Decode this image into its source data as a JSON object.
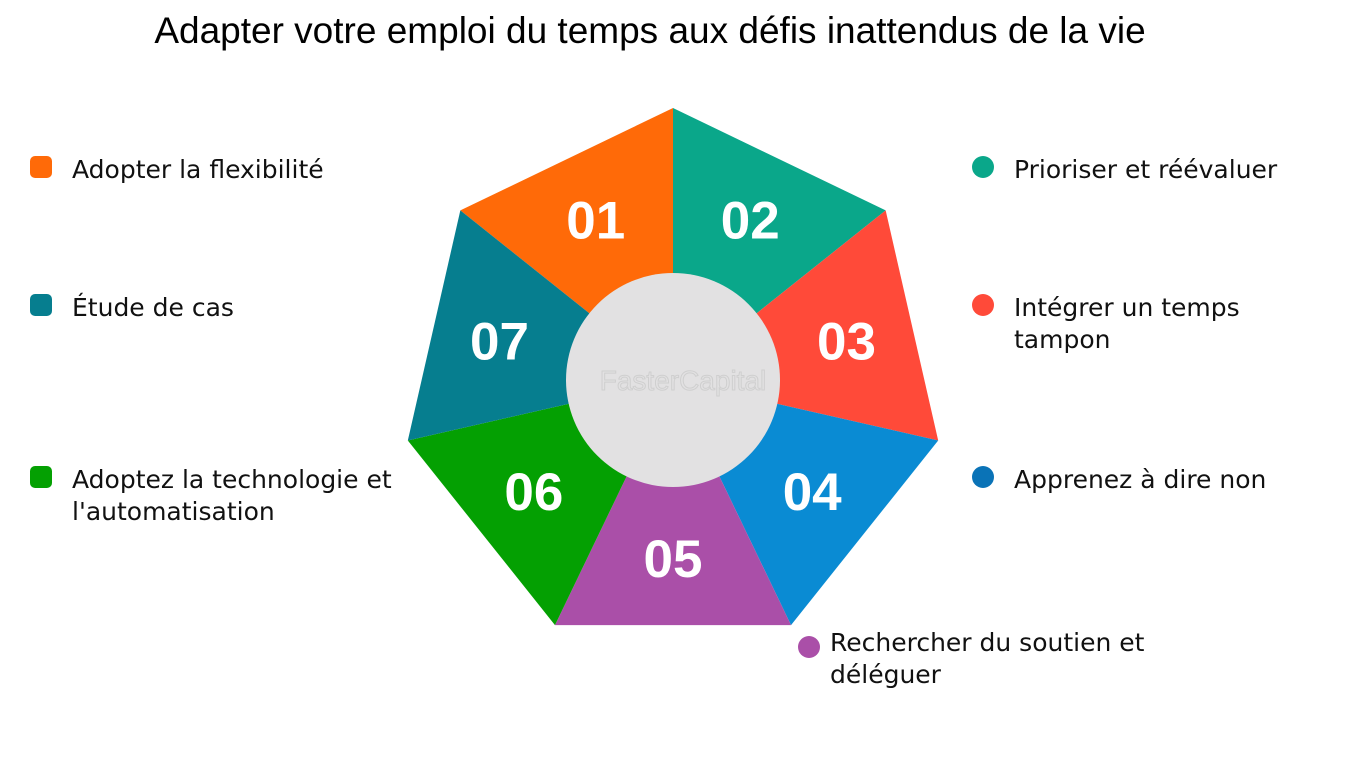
{
  "title": "Adapter votre emploi du temps aux défis inattendus de la vie",
  "watermark": "FasterCapital",
  "segments": [
    {
      "number": "01",
      "label": "Adopter la flexibilité",
      "color": "#ff6a08"
    },
    {
      "number": "02",
      "label": "Prioriser et réévaluer",
      "color": "#0aa78a"
    },
    {
      "number": "03",
      "label": "Intégrer un temps tampon",
      "color": "#ff4a39"
    },
    {
      "number": "04",
      "label": "Apprenez à dire non",
      "color": "#0a8bd3"
    },
    {
      "number": "05",
      "label": "Rechercher du soutien et déléguer",
      "color": "#aa4fa8"
    },
    {
      "number": "06",
      "label": "Adoptez la technologie et l'automatisation",
      "color": "#04a002"
    },
    {
      "number": "07",
      "label": "Étude de cas",
      "color": "#067e8f"
    }
  ],
  "legend_swatch_colors": {
    "01": "#ff6a08",
    "02": "#0aa78a",
    "03": "#ff4a39",
    "04": "#0a73b7",
    "05": "#aa4fa8",
    "06": "#04a002",
    "07": "#067e8f"
  },
  "center_color": "#e2e1e2"
}
